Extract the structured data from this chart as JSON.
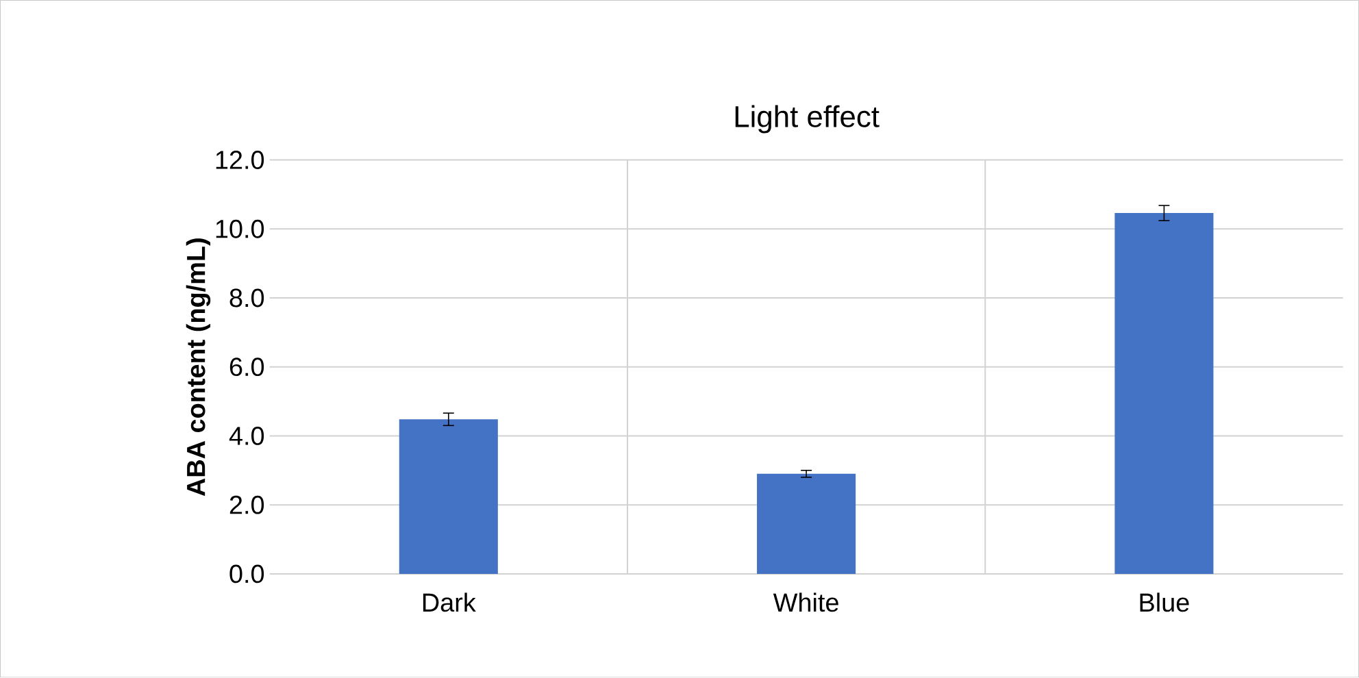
{
  "chart_data": {
    "type": "bar",
    "title": "Light effect",
    "ylabel": "ABA content (ng/mL)",
    "categories": [
      "Dark",
      "White",
      "Blue"
    ],
    "values": [
      4.48,
      2.9,
      10.46
    ],
    "errors": [
      0.18,
      0.1,
      0.22
    ],
    "color": "#4472c4",
    "ylim": [
      0,
      12
    ],
    "yticks": [
      {
        "value": 0,
        "label": "0.0"
      },
      {
        "value": 2,
        "label": "2.0"
      },
      {
        "value": 4,
        "label": "4.0"
      },
      {
        "value": 6,
        "label": "6.0"
      },
      {
        "value": 8,
        "label": "8.0"
      },
      {
        "value": 10,
        "label": "10.0"
      },
      {
        "value": 12,
        "label": "12.0"
      }
    ],
    "grid": true
  }
}
